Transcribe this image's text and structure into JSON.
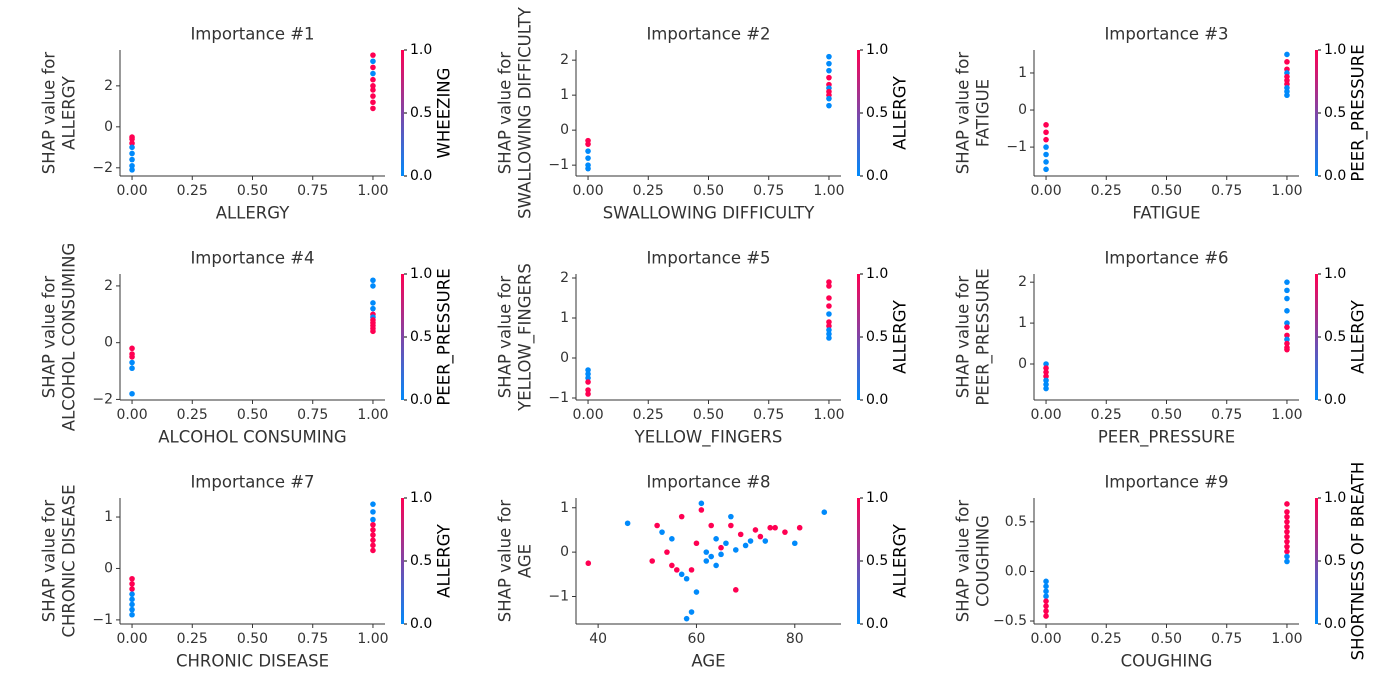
{
  "chart_data": [
    {
      "type": "scatter",
      "title": "Importance #1",
      "xlabel": "ALLERGY",
      "ylabel": [
        "SHAP value for",
        "ALLERGY"
      ],
      "colorbar_label": "WHEEZING",
      "x": [
        0,
        0,
        0,
        0,
        0,
        0,
        0,
        0,
        1,
        1,
        1,
        1,
        1,
        1,
        1,
        1,
        1,
        1
      ],
      "y": [
        -0.5,
        -0.6,
        -0.8,
        -1.0,
        -1.3,
        -1.6,
        -1.9,
        -2.1,
        3.5,
        3.2,
        2.9,
        2.6,
        2.3,
        2.0,
        1.8,
        1.5,
        1.2,
        0.9
      ],
      "c": [
        1,
        1,
        1,
        0,
        0,
        0,
        0,
        0,
        1,
        0,
        1,
        0,
        1,
        1,
        1,
        1,
        1,
        1
      ],
      "xlim": [
        -0.05,
        1.05
      ],
      "xticks": [
        {
          "value": 0,
          "label": "0.00"
        },
        {
          "value": 0.25,
          "label": "0.25"
        },
        {
          "value": 0.5,
          "label": "0.50"
        },
        {
          "value": 0.75,
          "label": "0.75"
        },
        {
          "value": 1,
          "label": "1.00"
        }
      ],
      "ylim": [
        -2.4,
        3.75
      ],
      "yticks": [
        {
          "value": -2,
          "label": "−2"
        },
        0,
        2
      ],
      "clim": [
        0,
        1
      ],
      "cticks": [
        {
          "value": 0,
          "label": "0.0"
        },
        0.5,
        {
          "value": 1,
          "label": "1.0"
        }
      ],
      "cmap": [
        "#008afb",
        "#ff0052"
      ]
    },
    {
      "type": "scatter",
      "title": "Importance #2",
      "xlabel": "SWALLOWING DIFFICULTY",
      "ylabel": [
        "SHAP value for",
        "SWALLOWING DIFFICULTY"
      ],
      "colorbar_label": "ALLERGY",
      "x": [
        0,
        0,
        0,
        0,
        0,
        0,
        1,
        1,
        1,
        1,
        1,
        1,
        1,
        1,
        1,
        1
      ],
      "y": [
        -0.3,
        -0.4,
        -0.6,
        -0.8,
        -1.0,
        -1.1,
        2.1,
        1.9,
        1.7,
        1.5,
        1.3,
        1.2,
        1.1,
        1.0,
        0.9,
        0.7
      ],
      "c": [
        1,
        1,
        0,
        0,
        0,
        0,
        0,
        0,
        0,
        1,
        1,
        0,
        1,
        1,
        0,
        0
      ],
      "xlim": [
        -0.05,
        1.05
      ],
      "xticks": [
        {
          "value": 0,
          "label": "0.00"
        },
        {
          "value": 0.25,
          "label": "0.25"
        },
        {
          "value": 0.5,
          "label": "0.50"
        },
        {
          "value": 0.75,
          "label": "0.75"
        },
        {
          "value": 1,
          "label": "1.00"
        }
      ],
      "ylim": [
        -1.31,
        2.29
      ],
      "yticks": [
        {
          "value": -1,
          "label": "−1"
        },
        0,
        1,
        2
      ],
      "clim": [
        0,
        1
      ],
      "cticks": [
        {
          "value": 0,
          "label": "0.0"
        },
        0.5,
        {
          "value": 1,
          "label": "1.0"
        }
      ],
      "cmap": [
        "#008afb",
        "#ff0052"
      ]
    },
    {
      "type": "scatter",
      "title": "Importance #3",
      "xlabel": "FATIGUE",
      "ylabel": [
        "SHAP value for",
        "FATIGUE"
      ],
      "colorbar_label": "PEER_PRESSURE",
      "x": [
        0,
        0,
        0,
        0,
        0,
        0,
        0,
        1,
        1,
        1,
        1,
        1,
        1,
        1,
        1,
        1,
        1
      ],
      "y": [
        -0.4,
        -0.6,
        -0.8,
        -1.0,
        -1.2,
        -1.4,
        -1.6,
        1.5,
        1.3,
        1.1,
        1.0,
        0.9,
        0.8,
        0.7,
        0.6,
        0.5,
        0.4
      ],
      "c": [
        1,
        1,
        1,
        0,
        0,
        0,
        0,
        0,
        1,
        1,
        0,
        1,
        1,
        1,
        0,
        0,
        0
      ],
      "xlim": [
        -0.05,
        1.05
      ],
      "xticks": [
        {
          "value": 0,
          "label": "0.00"
        },
        {
          "value": 0.25,
          "label": "0.25"
        },
        {
          "value": 0.5,
          "label": "0.50"
        },
        {
          "value": 0.75,
          "label": "0.75"
        },
        {
          "value": 1,
          "label": "1.00"
        }
      ],
      "ylim": [
        -1.78,
        1.62
      ],
      "yticks": [
        {
          "value": -1,
          "label": "−1"
        },
        0,
        1
      ],
      "clim": [
        0,
        1
      ],
      "cticks": [
        {
          "value": 0,
          "label": "0.0"
        },
        0.5,
        {
          "value": 1,
          "label": "1.0"
        }
      ],
      "cmap": [
        "#008afb",
        "#ff0052"
      ]
    },
    {
      "type": "scatter",
      "title": "Importance #4",
      "xlabel": "ALCOHOL CONSUMING",
      "ylabel": [
        "SHAP value for",
        "ALCOHOL CONSUMING"
      ],
      "colorbar_label": "PEER_PRESSURE",
      "x": [
        0,
        0,
        0,
        0,
        0,
        0,
        1,
        1,
        1,
        1,
        1,
        1,
        1,
        1,
        1,
        1,
        1
      ],
      "y": [
        -0.2,
        -0.4,
        -0.5,
        -0.7,
        -0.9,
        -1.8,
        2.2,
        2.0,
        1.4,
        1.2,
        1.0,
        0.9,
        0.8,
        0.7,
        0.6,
        0.5,
        0.4
      ],
      "c": [
        1,
        1,
        1,
        0,
        0,
        0,
        0,
        0,
        0,
        0,
        1,
        0,
        1,
        1,
        1,
        1,
        1
      ],
      "xlim": [
        -0.05,
        1.05
      ],
      "xticks": [
        {
          "value": 0,
          "label": "0.00"
        },
        {
          "value": 0.25,
          "label": "0.25"
        },
        {
          "value": 0.5,
          "label": "0.50"
        },
        {
          "value": 0.75,
          "label": "0.75"
        },
        {
          "value": 1,
          "label": "1.00"
        }
      ],
      "ylim": [
        -2.02,
        2.42
      ],
      "yticks": [
        {
          "value": -2,
          "label": "−2"
        },
        0,
        2
      ],
      "clim": [
        0,
        1
      ],
      "cticks": [
        {
          "value": 0,
          "label": "0.0"
        },
        0.5,
        {
          "value": 1,
          "label": "1.0"
        }
      ],
      "cmap": [
        "#008afb",
        "#ff0052"
      ]
    },
    {
      "type": "scatter",
      "title": "Importance #5",
      "xlabel": "YELLOW_FINGERS",
      "ylabel": [
        "SHAP value for",
        "YELLOW_FINGERS"
      ],
      "colorbar_label": "ALLERGY",
      "x": [
        0,
        0,
        0,
        0,
        0,
        0,
        1,
        1,
        1,
        1,
        1,
        1,
        1,
        1,
        1,
        1
      ],
      "y": [
        -0.3,
        -0.4,
        -0.5,
        -0.6,
        -0.8,
        -0.9,
        1.9,
        1.8,
        1.5,
        1.3,
        1.1,
        0.9,
        0.8,
        0.7,
        0.6,
        0.5
      ],
      "c": [
        0,
        0,
        0,
        1,
        1,
        1,
        1,
        1,
        1,
        1,
        0,
        1,
        1,
        0,
        0,
        0
      ],
      "xlim": [
        -0.05,
        1.05
      ],
      "xticks": [
        {
          "value": 0,
          "label": "0.00"
        },
        {
          "value": 0.25,
          "label": "0.25"
        },
        {
          "value": 0.5,
          "label": "0.50"
        },
        {
          "value": 0.75,
          "label": "0.75"
        },
        {
          "value": 1,
          "label": "1.00"
        }
      ],
      "ylim": [
        -1.05,
        2.1
      ],
      "yticks": [
        {
          "value": -1,
          "label": "−1"
        },
        0,
        1,
        2
      ],
      "clim": [
        0,
        1
      ],
      "cticks": [
        {
          "value": 0,
          "label": "0.0"
        },
        0.5,
        {
          "value": 1,
          "label": "1.0"
        }
      ],
      "cmap": [
        "#008afb",
        "#ff0052"
      ]
    },
    {
      "type": "scatter",
      "title": "Importance #6",
      "xlabel": "PEER_PRESSURE",
      "ylabel": [
        "SHAP value for",
        "PEER_PRESSURE"
      ],
      "colorbar_label": "ALLERGY",
      "x": [
        0,
        0,
        0,
        0,
        0,
        0,
        0,
        1,
        1,
        1,
        1,
        1,
        1,
        1,
        1,
        1,
        1,
        1
      ],
      "y": [
        0.0,
        -0.1,
        -0.2,
        -0.3,
        -0.4,
        -0.5,
        -0.6,
        2.0,
        1.8,
        1.6,
        1.3,
        1.0,
        0.9,
        0.7,
        0.6,
        0.5,
        0.4,
        0.35
      ],
      "c": [
        0,
        1,
        1,
        1,
        0,
        0,
        0,
        0,
        0,
        0,
        0,
        0,
        1,
        1,
        0,
        1,
        1,
        1
      ],
      "xlim": [
        -0.05,
        1.05
      ],
      "xticks": [
        {
          "value": 0,
          "label": "0.00"
        },
        {
          "value": 0.25,
          "label": "0.25"
        },
        {
          "value": 0.5,
          "label": "0.50"
        },
        {
          "value": 0.75,
          "label": "0.75"
        },
        {
          "value": 1,
          "label": "1.00"
        }
      ],
      "ylim": [
        -0.88,
        2.2
      ],
      "yticks": [
        0,
        1,
        2
      ],
      "clim": [
        0,
        1
      ],
      "cticks": [
        {
          "value": 0,
          "label": "0.0"
        },
        0.5,
        {
          "value": 1,
          "label": "1.0"
        }
      ],
      "cmap": [
        "#008afb",
        "#ff0052"
      ]
    },
    {
      "type": "scatter",
      "title": "Importance #7",
      "xlabel": "CHRONIC DISEASE",
      "ylabel": [
        "SHAP value for",
        "CHRONIC DISEASE"
      ],
      "colorbar_label": "ALLERGY",
      "x": [
        0,
        0,
        0,
        0,
        0,
        0,
        0,
        0,
        1,
        1,
        1,
        1,
        1,
        1,
        1,
        1,
        1
      ],
      "y": [
        -0.2,
        -0.3,
        -0.4,
        -0.5,
        -0.6,
        -0.7,
        -0.8,
        -0.9,
        1.25,
        1.1,
        0.95,
        0.85,
        0.75,
        0.65,
        0.55,
        0.45,
        0.35
      ],
      "c": [
        1,
        1,
        1,
        0,
        0,
        0,
        0,
        0,
        0,
        0,
        0,
        1,
        1,
        1,
        1,
        1,
        1
      ],
      "xlim": [
        -0.05,
        1.05
      ],
      "xticks": [
        {
          "value": 0,
          "label": "0.00"
        },
        {
          "value": 0.25,
          "label": "0.25"
        },
        {
          "value": 0.5,
          "label": "0.50"
        },
        {
          "value": 0.75,
          "label": "0.75"
        },
        {
          "value": 1,
          "label": "1.00"
        }
      ],
      "ylim": [
        -1.08,
        1.37
      ],
      "yticks": [
        {
          "value": -1,
          "label": "−1"
        },
        0,
        1
      ],
      "clim": [
        0,
        1
      ],
      "cticks": [
        {
          "value": 0,
          "label": "0.0"
        },
        0.5,
        {
          "value": 1,
          "label": "1.0"
        }
      ],
      "cmap": [
        "#008afb",
        "#ff0052"
      ]
    },
    {
      "type": "scatter",
      "title": "Importance #8",
      "xlabel": "AGE",
      "ylabel": [
        "SHAP value for",
        "AGE"
      ],
      "colorbar_label": "ALLERGY",
      "x": [
        38,
        46,
        51,
        52,
        53,
        54,
        55,
        55,
        56,
        57,
        57,
        58,
        58,
        59,
        59,
        60,
        60,
        61,
        61,
        62,
        62,
        63,
        63,
        64,
        64,
        65,
        65,
        66,
        67,
        67,
        68,
        68,
        69,
        70,
        71,
        72,
        73,
        74,
        75,
        76,
        78,
        80,
        81,
        86
      ],
      "y": [
        -0.25,
        0.65,
        -0.2,
        0.6,
        0.45,
        0.0,
        -0.3,
        0.3,
        -0.4,
        -0.5,
        0.8,
        -0.6,
        -1.5,
        -1.35,
        -0.4,
        -0.9,
        0.2,
        1.1,
        0.95,
        0.0,
        -0.2,
        0.6,
        -0.1,
        -0.3,
        0.3,
        0.1,
        -0.05,
        0.2,
        0.8,
        0.6,
        -0.85,
        0.05,
        0.4,
        0.15,
        0.25,
        0.5,
        0.35,
        0.25,
        0.55,
        0.55,
        0.45,
        0.2,
        0.55,
        0.9
      ],
      "c": [
        1,
        0,
        1,
        1,
        0,
        1,
        1,
        0,
        1,
        0,
        1,
        0,
        0,
        0,
        1,
        0,
        1,
        0,
        1,
        0,
        0,
        1,
        0,
        0,
        0,
        1,
        0,
        0,
        0,
        1,
        1,
        0,
        1,
        0,
        0,
        1,
        1,
        0,
        1,
        1,
        1,
        0,
        1,
        0
      ],
      "xlim": [
        35.5,
        89.4
      ],
      "xticks": [
        40,
        60,
        80
      ],
      "ylim": [
        -1.62,
        1.22
      ],
      "yticks": [
        {
          "value": -1,
          "label": "−1"
        },
        0,
        1
      ],
      "clim": [
        0,
        1
      ],
      "cticks": [
        {
          "value": 0,
          "label": "0.0"
        },
        0.5,
        {
          "value": 1,
          "label": "1.0"
        }
      ],
      "cmap": [
        "#008afb",
        "#ff0052"
      ]
    },
    {
      "type": "scatter",
      "title": "Importance #9",
      "xlabel": "COUGHING",
      "ylabel": [
        "SHAP value for",
        "COUGHING"
      ],
      "colorbar_label": "SHORTNESS OF BREATH",
      "x": [
        0,
        0,
        0,
        0,
        0,
        0,
        0,
        0,
        1,
        1,
        1,
        1,
        1,
        1,
        1,
        1,
        1,
        1,
        1,
        1
      ],
      "y": [
        -0.1,
        -0.15,
        -0.2,
        -0.25,
        -0.3,
        -0.35,
        -0.4,
        -0.45,
        0.68,
        0.6,
        0.55,
        0.5,
        0.45,
        0.4,
        0.35,
        0.3,
        0.25,
        0.2,
        0.15,
        0.1
      ],
      "c": [
        0,
        0,
        0,
        0,
        1,
        1,
        1,
        1,
        1,
        1,
        1,
        1,
        1,
        1,
        1,
        1,
        1,
        1,
        0,
        0
      ],
      "xlim": [
        -0.05,
        1.05
      ],
      "xticks": [
        {
          "value": 0,
          "label": "0.00"
        },
        {
          "value": 0.25,
          "label": "0.25"
        },
        {
          "value": 0.5,
          "label": "0.50"
        },
        {
          "value": 0.75,
          "label": "0.75"
        },
        {
          "value": 1,
          "label": "1.00"
        }
      ],
      "ylim": [
        -0.53,
        0.74
      ],
      "yticks": [
        {
          "value": -0.5,
          "label": "−0.5"
        },
        {
          "value": 0,
          "label": "0.0"
        },
        0.5
      ],
      "clim": [
        0,
        1
      ],
      "cticks": [
        {
          "value": 0,
          "label": "0.0"
        },
        0.5,
        {
          "value": 1,
          "label": "1.0"
        }
      ],
      "cmap": [
        "#008afb",
        "#ff0052"
      ]
    }
  ]
}
